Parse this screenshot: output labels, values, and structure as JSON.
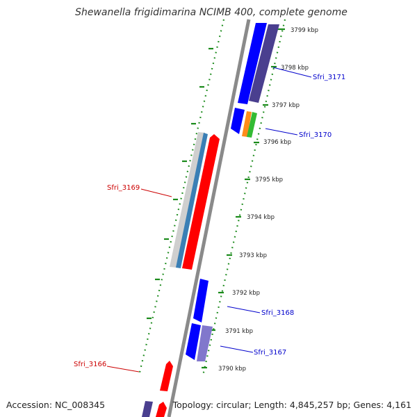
{
  "map": {
    "title": "Shewanella frigidimarina NCIMB 400, complete genome",
    "accession": "Accession: NC_008345",
    "topology": "Topology: circular; Length: 4,845,257 bp; Genes: 4,161",
    "colors": {
      "backbone": "#8a8a8a",
      "tick": "#1a8a1a",
      "forward_gene": "#ff0000",
      "reverse_gene": "#0000ff",
      "reverse_label": "#0000cc",
      "forward_label": "#cc0000",
      "dark_gene": "#4a3f8f",
      "light_gene": "#8177cc",
      "orange_gene": "#ff8c1a",
      "green_gene": "#33bb33",
      "steel_gene": "#3a7fb5",
      "grey_gene": "#cfcfcf"
    },
    "kbp_labels": [
      "3799 kbp",
      "3798 kbp",
      "3797 kbp",
      "3796 kbp",
      "3795 kbp",
      "3794 kbp",
      "3793 kbp",
      "3792 kbp",
      "3791 kbp",
      "3790 kbp"
    ],
    "gene_labels": [
      {
        "text": "Sfri_3171",
        "strand": "reverse"
      },
      {
        "text": "Sfri_3170",
        "strand": "reverse"
      },
      {
        "text": "Sfri_3169",
        "strand": "forward"
      },
      {
        "text": "Sfri_3168",
        "strand": "reverse"
      },
      {
        "text": "Sfri_3167",
        "strand": "reverse"
      },
      {
        "text": "Sfri_3166",
        "strand": "forward"
      }
    ]
  }
}
